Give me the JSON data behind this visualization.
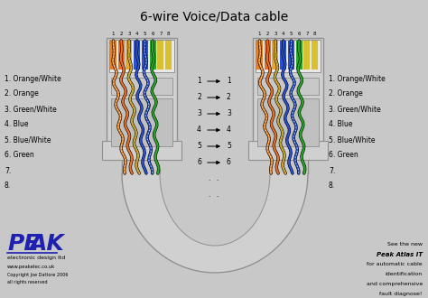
{
  "title": "6-wire Voice/Data cable",
  "bg_color": "#c8c8c8",
  "wire_labels": [
    "1. Orange/White",
    "2. Orange",
    "3. Green/White",
    "4. Blue",
    "5. Blue/White",
    "6. Green",
    "7.",
    "8."
  ],
  "arrow_labels": [
    "1",
    "2",
    "3",
    "4",
    "5",
    "6",
    ".",
    "."
  ],
  "peak_sub": "electronic design ltd",
  "peak_url": "www.peakelec.co.uk",
  "peak_copy": "Copyright Joe Dattore 2006",
  "peak_rights": "all rights reserved",
  "right_ad_line1": "See the new",
  "right_ad_line2": "Peak Atlas IT",
  "right_ad_line3": "for automatic cable",
  "right_ad_line4": "identification",
  "right_ad_line5": "and comprehensive",
  "right_ad_line6": "fault diagnose!",
  "pin_colors": [
    "#e8c820",
    "#e8c820",
    "#e8c820",
    "#e8c820",
    "#e8c820",
    "#e8c820",
    "#d4c840",
    "#d4c840"
  ],
  "wire_active_colors": [
    "#e88020",
    "#e87020",
    "#e8a830",
    "#2850d0",
    "#2850d0",
    "#28a828"
  ],
  "wire_stripe_colors": [
    "#ffffff",
    null,
    "#28a828",
    null,
    "#ffffff",
    null
  ],
  "connector_face": "#d0d0d0",
  "connector_border": "#909090",
  "connector_dark": "#b0b0b0",
  "cable_color": "#d0d0d0",
  "cable_border": "#909090"
}
